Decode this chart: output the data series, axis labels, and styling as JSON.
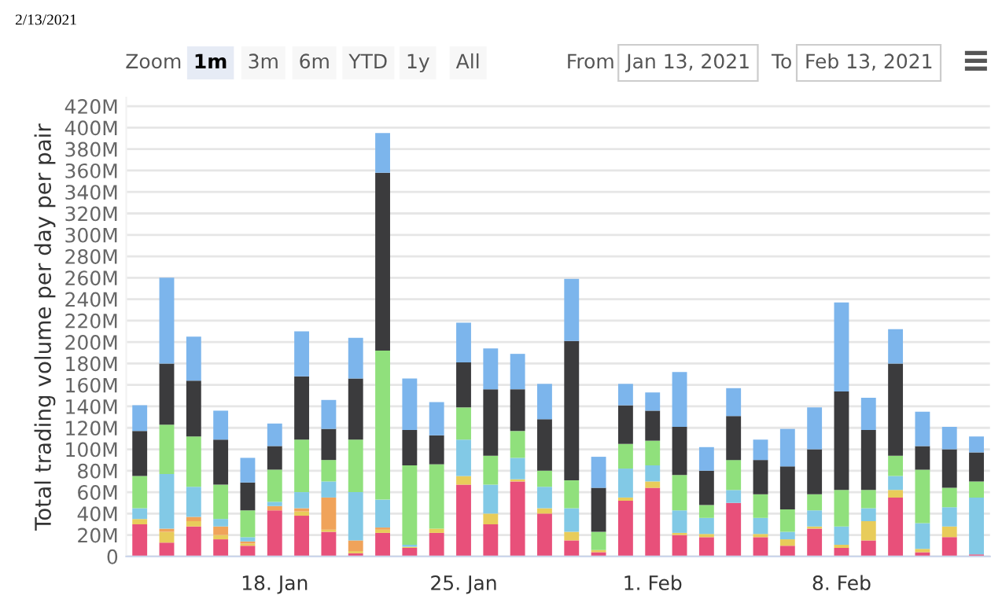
{
  "chart_data": {
    "type": "bar",
    "stacked": true,
    "ylabel": "Total trading volume per day per pair",
    "categories": [
      null,
      null,
      null,
      null,
      null,
      "18. Jan",
      null,
      null,
      null,
      null,
      null,
      null,
      "25. Jan",
      null,
      null,
      null,
      null,
      null,
      null,
      "1. Feb",
      null,
      null,
      null,
      null,
      null,
      null,
      "8. Feb",
      null,
      null,
      null,
      null,
      null
    ],
    "series": [
      {
        "color": "#e8507a",
        "values": [
          30,
          13,
          28,
          16,
          10,
          43,
          38,
          23,
          3,
          22,
          8,
          22,
          67,
          30,
          70,
          40,
          15,
          4,
          52,
          64,
          20,
          18,
          50,
          18,
          10,
          26,
          8,
          15,
          55,
          4,
          18,
          2
        ]
      },
      {
        "color": "#e8cc5a",
        "values": [
          5,
          10,
          5,
          4,
          2,
          0,
          4,
          2,
          2,
          3,
          1,
          4,
          8,
          10,
          2,
          5,
          8,
          2,
          3,
          6,
          2,
          3,
          0,
          3,
          6,
          2,
          3,
          18,
          7,
          3,
          10,
          0
        ]
      },
      {
        "color": "#f0a35a",
        "values": [
          0,
          3,
          4,
          8,
          2,
          4,
          3,
          30,
          10,
          2,
          0,
          0,
          0,
          0,
          0,
          0,
          0,
          0,
          0,
          0,
          0,
          0,
          0,
          0,
          0,
          0,
          0,
          0,
          0,
          0,
          0,
          0
        ]
      },
      {
        "color": "#82c9e6",
        "values": [
          10,
          51,
          28,
          7,
          4,
          4,
          15,
          15,
          45,
          26,
          2,
          0,
          34,
          27,
          20,
          20,
          22,
          0,
          27,
          15,
          21,
          15,
          12,
          15,
          7,
          15,
          17,
          12,
          13,
          24,
          18,
          53
        ]
      },
      {
        "color": "#90e07c",
        "values": [
          30,
          46,
          47,
          32,
          25,
          30,
          49,
          20,
          49,
          139,
          74,
          60,
          30,
          27,
          25,
          15,
          26,
          17,
          23,
          23,
          33,
          12,
          28,
          22,
          21,
          15,
          34,
          17,
          19,
          50,
          18,
          15
        ]
      },
      {
        "color": "#3b3b3d",
        "values": [
          42,
          57,
          52,
          42,
          26,
          22,
          59,
          29,
          57,
          166,
          33,
          27,
          42,
          62,
          39,
          48,
          130,
          41,
          36,
          28,
          45,
          32,
          41,
          32,
          40,
          42,
          92,
          56,
          86,
          22,
          36,
          27
        ]
      },
      {
        "color": "#7cb5ec",
        "values": [
          24,
          80,
          41,
          27,
          23,
          21,
          42,
          27,
          38,
          37,
          48,
          31,
          37,
          38,
          33,
          33,
          58,
          29,
          20,
          17,
          51,
          22,
          26,
          19,
          35,
          39,
          83,
          30,
          32,
          32,
          21,
          15
        ]
      }
    ],
    "ylim": [
      0,
      428
    ],
    "yticks": [
      {
        "value": 0,
        "label": "0"
      },
      {
        "value": 20,
        "label": "20M"
      },
      {
        "value": 40,
        "label": "40M"
      },
      {
        "value": 60,
        "label": "60M"
      },
      {
        "value": 80,
        "label": "80M"
      },
      {
        "value": 100,
        "label": "100M"
      },
      {
        "value": 120,
        "label": "120M"
      },
      {
        "value": 140,
        "label": "140M"
      },
      {
        "value": 160,
        "label": "160M"
      },
      {
        "value": 180,
        "label": "180M"
      },
      {
        "value": 200,
        "label": "200M"
      },
      {
        "value": 220,
        "label": "220M"
      },
      {
        "value": 240,
        "label": "240M"
      },
      {
        "value": 260,
        "label": "260M"
      },
      {
        "value": 280,
        "label": "280M"
      },
      {
        "value": 300,
        "label": "300M"
      },
      {
        "value": 320,
        "label": "320M"
      },
      {
        "value": 340,
        "label": "340M"
      },
      {
        "value": 360,
        "label": "360M"
      },
      {
        "value": 380,
        "label": "380M"
      },
      {
        "value": 400,
        "label": "400M"
      },
      {
        "value": 420,
        "label": "420M"
      }
    ],
    "grid": "y",
    "annotations": [
      "2/13/2021",
      "Zoom",
      "1m",
      "3m",
      "6m",
      "YTD",
      "1y",
      "All",
      "From",
      "Jan 13, 2021",
      "To",
      "Feb 13, 2021"
    ]
  }
}
